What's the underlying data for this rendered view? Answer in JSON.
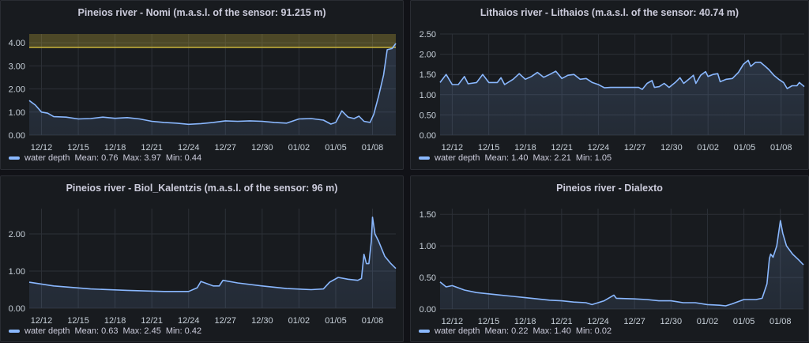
{
  "legend_label": "water depth",
  "colors": {
    "line": "#8ab8ff",
    "threshold": "#c9b43c",
    "grid": "#2c3037"
  },
  "chart_data": [
    {
      "type": "line",
      "title": "Pineios river - Nomi (m.a.s.l. of the sensor: 91.215 m)",
      "xlabel": "",
      "ylabel": "",
      "xticks": [
        "12/12",
        "12/15",
        "12/18",
        "12/21",
        "12/24",
        "12/27",
        "12/30",
        "01/02",
        "01/05",
        "01/08"
      ],
      "xlim_days_from_12_11": [
        0,
        29.9
      ],
      "ylim": [
        0,
        4.38
      ],
      "yticks": [
        "0.00",
        "1.00",
        "2.00",
        "3.00",
        "4.00"
      ],
      "threshold": 3.8,
      "stats": {
        "mean": "Mean: 0.76",
        "max": "Max: 3.97",
        "min": "Min: 0.44"
      },
      "series": [
        {
          "name": "water depth",
          "points": [
            [
              0,
              1.5
            ],
            [
              0.5,
              1.3
            ],
            [
              1,
              1.0
            ],
            [
              1.5,
              0.95
            ],
            [
              2,
              0.8
            ],
            [
              3,
              0.78
            ],
            [
              4,
              0.7
            ],
            [
              5,
              0.72
            ],
            [
              6,
              0.78
            ],
            [
              7,
              0.73
            ],
            [
              8,
              0.76
            ],
            [
              9,
              0.7
            ],
            [
              10,
              0.6
            ],
            [
              11,
              0.55
            ],
            [
              12,
              0.52
            ],
            [
              13,
              0.47
            ],
            [
              14,
              0.5
            ],
            [
              15,
              0.55
            ],
            [
              16,
              0.62
            ],
            [
              17,
              0.6
            ],
            [
              18,
              0.62
            ],
            [
              19,
              0.6
            ],
            [
              20,
              0.55
            ],
            [
              21,
              0.52
            ],
            [
              22,
              0.7
            ],
            [
              23,
              0.72
            ],
            [
              24,
              0.65
            ],
            [
              24.6,
              0.48
            ],
            [
              25,
              0.55
            ],
            [
              25.5,
              1.05
            ],
            [
              26,
              0.78
            ],
            [
              26.5,
              0.72
            ],
            [
              26.9,
              0.82
            ],
            [
              27.3,
              0.6
            ],
            [
              27.8,
              0.55
            ],
            [
              28.1,
              0.9
            ],
            [
              28.5,
              1.7
            ],
            [
              28.9,
              2.6
            ],
            [
              29.2,
              3.7
            ],
            [
              29.6,
              3.75
            ],
            [
              29.9,
              3.97
            ]
          ]
        }
      ]
    },
    {
      "type": "line",
      "title": "Lithaios river - Lithaios (m.a.s.l. of the sensor: 40.74 m)",
      "xlabel": "",
      "ylabel": "",
      "xticks": [
        "12/12",
        "12/15",
        "12/18",
        "12/21",
        "12/24",
        "12/27",
        "12/30",
        "01/02",
        "01/05",
        "01/08"
      ],
      "xlim_days_from_12_11": [
        0,
        29.9
      ],
      "ylim": [
        0,
        2.5
      ],
      "yticks": [
        "0.00",
        "0.50",
        "1.00",
        "1.50",
        "2.00",
        "2.50"
      ],
      "stats": {
        "mean": "Mean: 1.40",
        "max": "Max: 2.21",
        "min": "Min: 1.05"
      },
      "series": [
        {
          "name": "water depth",
          "points": [
            [
              0,
              1.3
            ],
            [
              0.5,
              1.5
            ],
            [
              1,
              1.25
            ],
            [
              1.5,
              1.25
            ],
            [
              2,
              1.45
            ],
            [
              2.3,
              1.27
            ],
            [
              3,
              1.3
            ],
            [
              3.5,
              1.5
            ],
            [
              4,
              1.3
            ],
            [
              4.7,
              1.3
            ],
            [
              5,
              1.42
            ],
            [
              5.3,
              1.25
            ],
            [
              6,
              1.38
            ],
            [
              6.5,
              1.52
            ],
            [
              7,
              1.38
            ],
            [
              7.5,
              1.45
            ],
            [
              8,
              1.55
            ],
            [
              8.5,
              1.43
            ],
            [
              9,
              1.5
            ],
            [
              9.5,
              1.58
            ],
            [
              10,
              1.4
            ],
            [
              10.5,
              1.48
            ],
            [
              11,
              1.5
            ],
            [
              11.5,
              1.38
            ],
            [
              12,
              1.4
            ],
            [
              12.5,
              1.3
            ],
            [
              13,
              1.25
            ],
            [
              13.5,
              1.17
            ],
            [
              14,
              1.18
            ],
            [
              16.3,
              1.18
            ],
            [
              16.6,
              1.13
            ],
            [
              17,
              1.28
            ],
            [
              17.4,
              1.35
            ],
            [
              17.6,
              1.18
            ],
            [
              18,
              1.2
            ],
            [
              18.4,
              1.28
            ],
            [
              18.8,
              1.18
            ],
            [
              19.3,
              1.3
            ],
            [
              19.7,
              1.42
            ],
            [
              20,
              1.28
            ],
            [
              20.5,
              1.4
            ],
            [
              20.8,
              1.48
            ],
            [
              21,
              1.28
            ],
            [
              21.4,
              1.48
            ],
            [
              21.8,
              1.57
            ],
            [
              22,
              1.45
            ],
            [
              22.4,
              1.5
            ],
            [
              22.8,
              1.52
            ],
            [
              23,
              1.32
            ],
            [
              23.5,
              1.38
            ],
            [
              24,
              1.4
            ],
            [
              24.5,
              1.55
            ],
            [
              24.9,
              1.75
            ],
            [
              25.3,
              1.85
            ],
            [
              25.5,
              1.7
            ],
            [
              25.9,
              1.8
            ],
            [
              26.3,
              1.8
            ],
            [
              26.7,
              1.7
            ],
            [
              27,
              1.62
            ],
            [
              27.4,
              1.48
            ],
            [
              27.8,
              1.38
            ],
            [
              28.2,
              1.3
            ],
            [
              28.5,
              1.15
            ],
            [
              28.9,
              1.22
            ],
            [
              29.3,
              1.22
            ],
            [
              29.5,
              1.3
            ],
            [
              29.9,
              1.2
            ]
          ]
        }
      ]
    },
    {
      "type": "line",
      "title": "Pineios river - Biol_Kalentzis (m.a.s.l. of the sensor: 96 m)",
      "xlabel": "",
      "ylabel": "",
      "xticks": [
        "12/12",
        "12/15",
        "12/18",
        "12/21",
        "12/24",
        "12/27",
        "12/30",
        "01/02",
        "01/05",
        "01/08"
      ],
      "xlim_days_from_12_11": [
        0,
        29.9
      ],
      "ylim": [
        0,
        2.68
      ],
      "yticks": [
        "0.00",
        "1.00",
        "2.00"
      ],
      "stats": {
        "mean": "Mean: 0.63",
        "max": "Max: 2.45",
        "min": "Min: 0.42"
      },
      "series": [
        {
          "name": "water depth",
          "points": [
            [
              0,
              0.7
            ],
            [
              2,
              0.6
            ],
            [
              5,
              0.52
            ],
            [
              8,
              0.48
            ],
            [
              11,
              0.45
            ],
            [
              13,
              0.45
            ],
            [
              13.7,
              0.55
            ],
            [
              14,
              0.72
            ],
            [
              15,
              0.6
            ],
            [
              15.5,
              0.6
            ],
            [
              15.8,
              0.75
            ],
            [
              17,
              0.68
            ],
            [
              19,
              0.6
            ],
            [
              21,
              0.53
            ],
            [
              23,
              0.5
            ],
            [
              24,
              0.52
            ],
            [
              24.5,
              0.7
            ],
            [
              25.2,
              0.83
            ],
            [
              26,
              0.78
            ],
            [
              26.8,
              0.75
            ],
            [
              27.1,
              0.8
            ],
            [
              27.3,
              1.45
            ],
            [
              27.5,
              1.2
            ],
            [
              27.7,
              1.2
            ],
            [
              27.9,
              1.8
            ],
            [
              28,
              2.45
            ],
            [
              28.2,
              2.0
            ],
            [
              28.5,
              1.8
            ],
            [
              29,
              1.4
            ],
            [
              29.5,
              1.2
            ],
            [
              29.9,
              1.07
            ]
          ]
        }
      ]
    },
    {
      "type": "line",
      "title": "Pineios river - Dialexto",
      "xlabel": "",
      "ylabel": "",
      "xticks": [
        "12/12",
        "12/15",
        "12/18",
        "12/21",
        "12/24",
        "12/27",
        "12/30",
        "01/02",
        "01/05",
        "01/08"
      ],
      "xlim_days_from_12_11": [
        0,
        29.9
      ],
      "ylim": [
        0,
        1.59
      ],
      "yticks": [
        "0.00",
        "0.50",
        "1.00",
        "1.50"
      ],
      "stats": {
        "mean": "Mean: 0.22",
        "max": "Max: 1.40",
        "min": "Min: 0.02"
      },
      "series": [
        {
          "name": "water depth",
          "points": [
            [
              0,
              0.43
            ],
            [
              0.5,
              0.35
            ],
            [
              1,
              0.37
            ],
            [
              2,
              0.3
            ],
            [
              3,
              0.26
            ],
            [
              4,
              0.24
            ],
            [
              5,
              0.22
            ],
            [
              6,
              0.2
            ],
            [
              7,
              0.18
            ],
            [
              8,
              0.16
            ],
            [
              9,
              0.14
            ],
            [
              10,
              0.13
            ],
            [
              11,
              0.11
            ],
            [
              12,
              0.1
            ],
            [
              12.5,
              0.07
            ],
            [
              13,
              0.1
            ],
            [
              13.5,
              0.13
            ],
            [
              14.3,
              0.22
            ],
            [
              14.5,
              0.17
            ],
            [
              16,
              0.16
            ],
            [
              17,
              0.15
            ],
            [
              18,
              0.13
            ],
            [
              19,
              0.13
            ],
            [
              20,
              0.1
            ],
            [
              21,
              0.1
            ],
            [
              22,
              0.07
            ],
            [
              23,
              0.06
            ],
            [
              23.5,
              0.05
            ],
            [
              24,
              0.08
            ],
            [
              25,
              0.15
            ],
            [
              26,
              0.15
            ],
            [
              26.5,
              0.17
            ],
            [
              26.9,
              0.4
            ],
            [
              27.1,
              0.8
            ],
            [
              27.2,
              0.87
            ],
            [
              27.4,
              0.82
            ],
            [
              27.7,
              1.0
            ],
            [
              28,
              1.4
            ],
            [
              28.2,
              1.2
            ],
            [
              28.5,
              1.0
            ],
            [
              29,
              0.87
            ],
            [
              29.5,
              0.78
            ],
            [
              29.9,
              0.7
            ]
          ]
        }
      ]
    }
  ]
}
